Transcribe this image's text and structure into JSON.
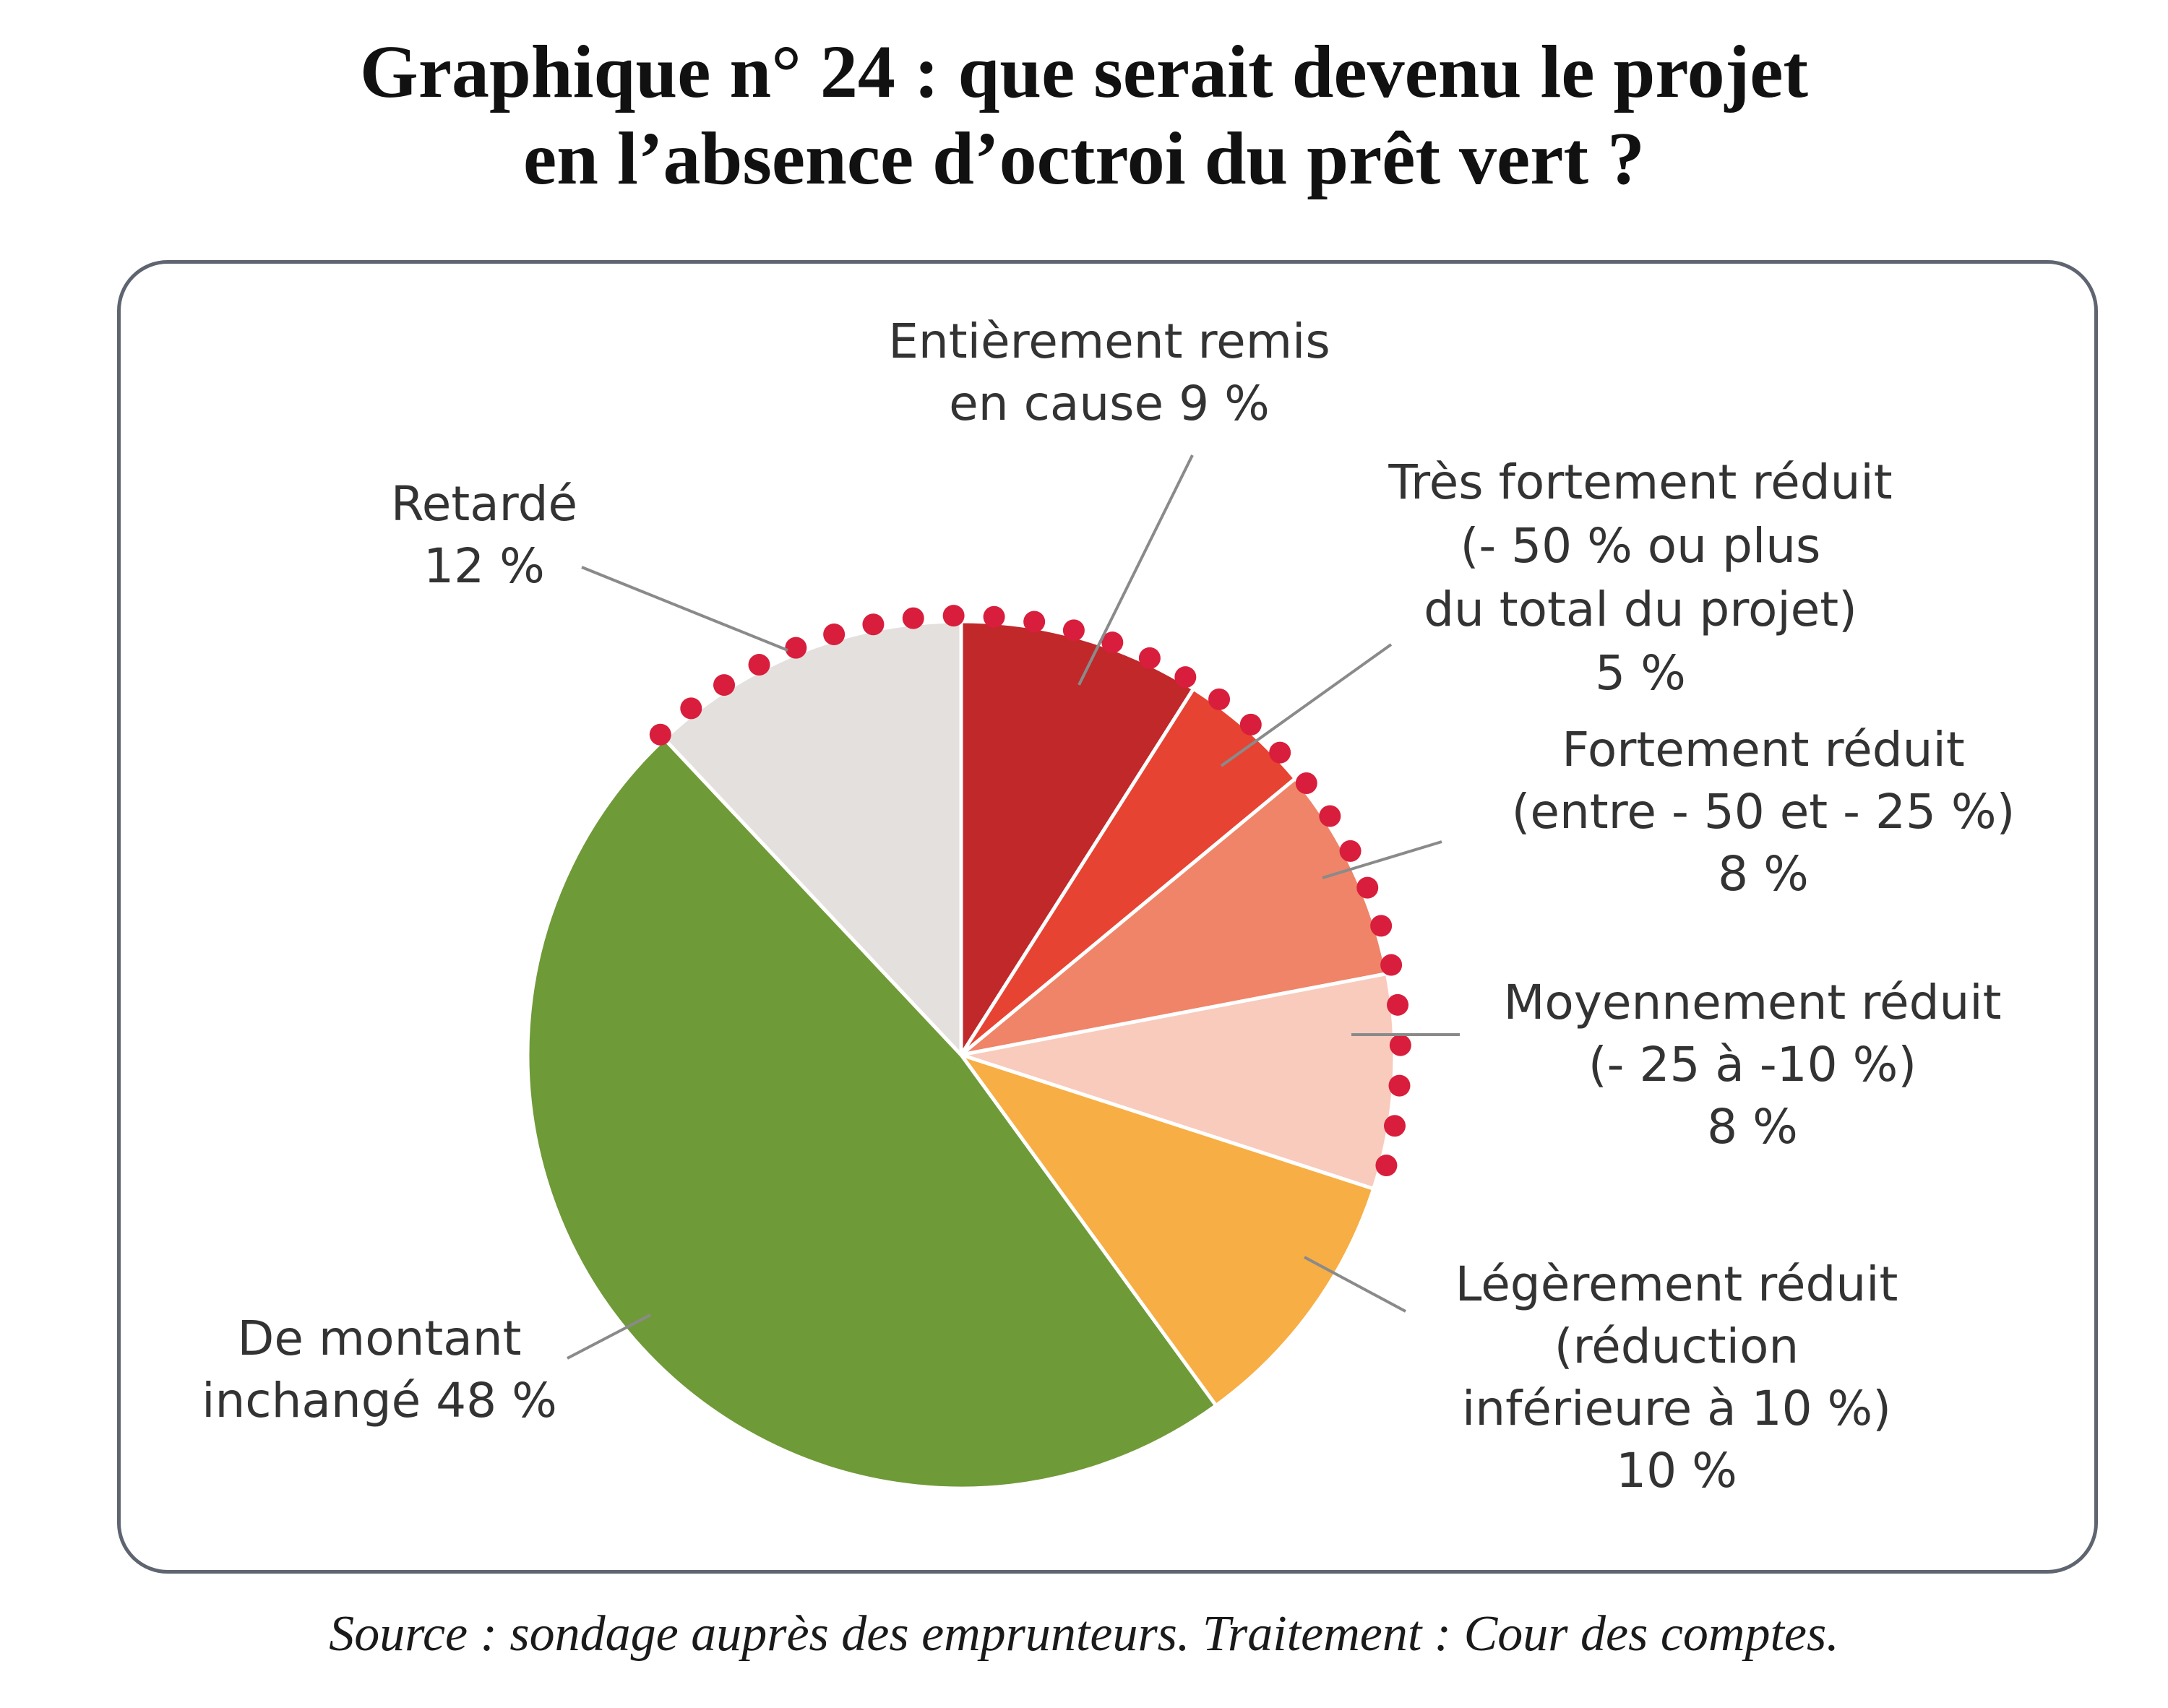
{
  "title": {
    "line1": "Graphique n° 24 : que serait devenu le projet",
    "line2": "en l’absence d’octroi du prêt vert ?"
  },
  "source": "Source : sondage auprès des emprunteurs. Traitement : Cour des comptes.",
  "colors": {
    "accent_dots": "#d81e3c",
    "frame": "#5f6570"
  },
  "chart_data": {
    "type": "pie",
    "start": "12 o'clock, clockwise",
    "slices": [
      {
        "value": 9,
        "color": "#c0282a",
        "label": [
          "Entièrement remis",
          "en cause 9 %"
        ]
      },
      {
        "value": 5,
        "color": "#e64332",
        "label": [
          "Très fortement réduit",
          "(- 50 % ou plus",
          "du total du projet)",
          "5 %"
        ]
      },
      {
        "value": 8,
        "color": "#ef8469",
        "label": [
          "Fortement réduit",
          "(entre - 50 et - 25 %)",
          "8 %"
        ]
      },
      {
        "value": 8,
        "color": "#f8cbbd",
        "label": [
          "Moyennement réduit",
          "(- 25 à -10 %)",
          "8 %"
        ]
      },
      {
        "value": 10,
        "color": "#f7ae45",
        "label": [
          "Légèrement réduit",
          "(réduction",
          "inférieure à 10 %)",
          "10 %"
        ]
      },
      {
        "value": 48,
        "color": "#6f9a38",
        "label": [
          "De montant",
          "inchangé 48 %"
        ]
      },
      {
        "value": 12,
        "color": "#e4e0de",
        "label": [
          "Retardé",
          "12 %"
        ]
      }
    ],
    "dotted_outline_slices": [
      "Retardé",
      "Entièrement remis",
      "Très fortement réduit",
      "Fortement réduit",
      "Moyennement réduit"
    ]
  }
}
